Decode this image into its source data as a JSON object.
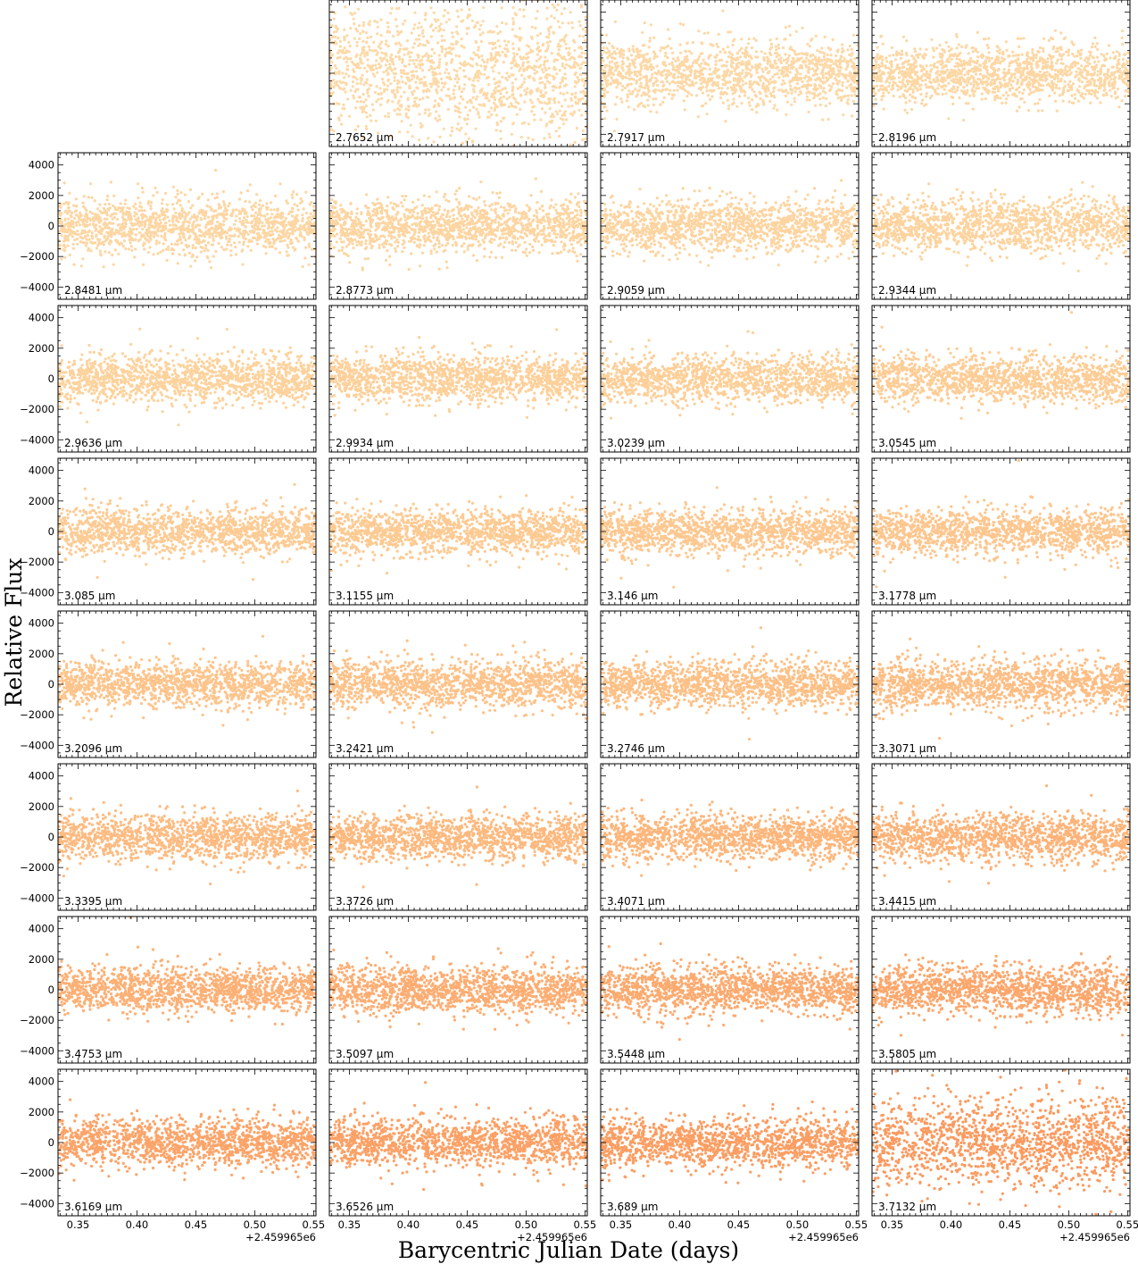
{
  "figure": {
    "ylabel": "Relative Flux",
    "xlabel": "Barycentric Julian Date (days)",
    "offset_label": "+2.459965e6"
  },
  "chart_data": {
    "type": "scatter",
    "title": "",
    "xlabel": "Barycentric Julian Date (days)",
    "ylabel": "Relative Flux",
    "x_offset": 2459965,
    "xlim": [
      0.333,
      0.552
    ],
    "ylim": [
      -4800,
      4800
    ],
    "xticks": [
      0.35,
      0.4,
      0.45,
      0.5,
      0.55
    ],
    "xtick_labels": [
      "0.35",
      "0.40",
      "0.45",
      "0.50",
      "0.55"
    ],
    "yticks": [
      4000,
      2000,
      0,
      -2000,
      -4000
    ],
    "ytick_labels": [
      "4000",
      "2000",
      "0",
      "−2000",
      "−4000"
    ],
    "grid": false,
    "layout": "8 rows x 4 columns; first cell of top row empty",
    "unit_label": "μm",
    "points_per_panel": 1400,
    "panels": [
      {
        "wavelength": "2.7652",
        "scatter_std": 2100,
        "color": "#fdd9a7"
      },
      {
        "wavelength": "2.7917",
        "scatter_std": 1100,
        "color": "#fdd8a6"
      },
      {
        "wavelength": "2.8196",
        "scatter_std": 950,
        "color": "#fdd7a4"
      },
      {
        "wavelength": "2.8481",
        "scatter_std": 900,
        "color": "#fdd6a3"
      },
      {
        "wavelength": "2.8773",
        "scatter_std": 850,
        "color": "#fdd5a1"
      },
      {
        "wavelength": "2.9059",
        "scatter_std": 850,
        "color": "#fdd4a0"
      },
      {
        "wavelength": "2.9344",
        "scatter_std": 850,
        "color": "#fdd39e"
      },
      {
        "wavelength": "2.9636",
        "scatter_std": 800,
        "color": "#fdd29c"
      },
      {
        "wavelength": "2.9934",
        "scatter_std": 780,
        "color": "#fdd09a"
      },
      {
        "wavelength": "3.0239",
        "scatter_std": 780,
        "color": "#fdcf98"
      },
      {
        "wavelength": "3.0545",
        "scatter_std": 780,
        "color": "#fdcd96"
      },
      {
        "wavelength": "3.085",
        "scatter_std": 750,
        "color": "#fdcb94"
      },
      {
        "wavelength": "3.1155",
        "scatter_std": 750,
        "color": "#fdca92"
      },
      {
        "wavelength": "3.146",
        "scatter_std": 750,
        "color": "#fdc890"
      },
      {
        "wavelength": "3.1778",
        "scatter_std": 750,
        "color": "#fdc68e"
      },
      {
        "wavelength": "3.2096",
        "scatter_std": 750,
        "color": "#fdc48b"
      },
      {
        "wavelength": "3.2421",
        "scatter_std": 750,
        "color": "#fdc289"
      },
      {
        "wavelength": "3.2746",
        "scatter_std": 750,
        "color": "#fdc086"
      },
      {
        "wavelength": "3.3071",
        "scatter_std": 800,
        "color": "#fdbe84"
      },
      {
        "wavelength": "3.3395",
        "scatter_std": 780,
        "color": "#fdbb81"
      },
      {
        "wavelength": "3.3726",
        "scatter_std": 750,
        "color": "#fdb97e"
      },
      {
        "wavelength": "3.4071",
        "scatter_std": 750,
        "color": "#fdb67b"
      },
      {
        "wavelength": "3.4415",
        "scatter_std": 780,
        "color": "#fdb378"
      },
      {
        "wavelength": "3.4753",
        "scatter_std": 750,
        "color": "#fdb075"
      },
      {
        "wavelength": "3.5097",
        "scatter_std": 750,
        "color": "#fdad72"
      },
      {
        "wavelength": "3.5448",
        "scatter_std": 750,
        "color": "#fcaa6f"
      },
      {
        "wavelength": "3.5805",
        "scatter_std": 780,
        "color": "#fca76c"
      },
      {
        "wavelength": "3.6169",
        "scatter_std": 800,
        "color": "#fca469"
      },
      {
        "wavelength": "3.6526",
        "scatter_std": 800,
        "color": "#fca166"
      },
      {
        "wavelength": "3.689",
        "scatter_std": 800,
        "color": "#fb9e63"
      },
      {
        "wavelength": "3.7132",
        "scatter_std": 1500,
        "color": "#fb9a5f"
      }
    ]
  }
}
